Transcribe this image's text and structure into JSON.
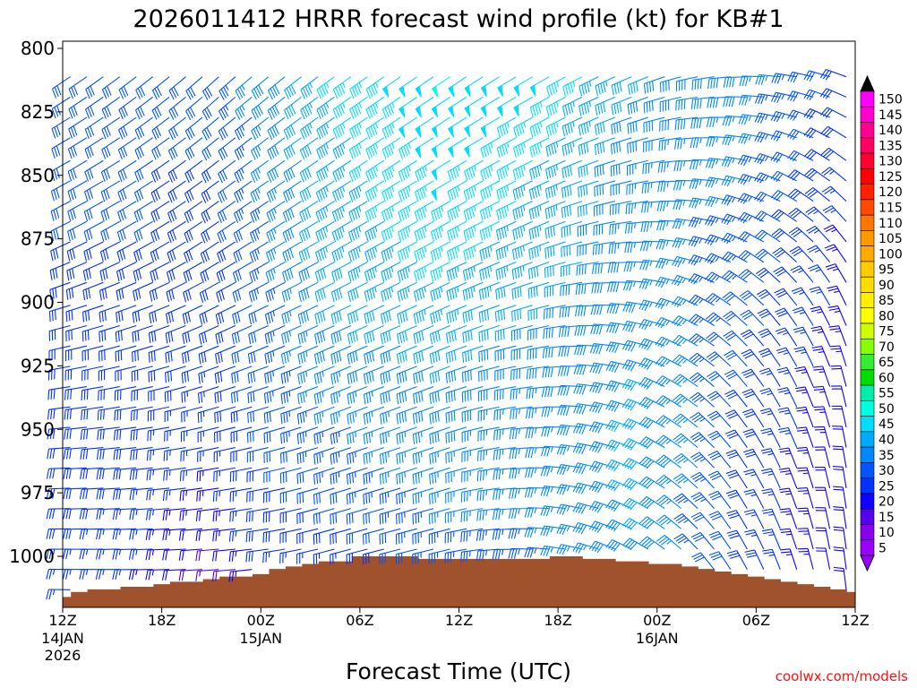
{
  "chart_data": {
    "type": "wind_barb_profile",
    "title": "2026011412 HRRR forecast wind profile (kt) for KB#1",
    "xlabel": "Forecast Time (UTC)",
    "ylabel": "",
    "credit": "coolwx.com/models",
    "x_range_hours": [
      0,
      48
    ],
    "y_range_hpa": [
      800,
      1020
    ],
    "y_ticks": [
      {
        "value": 800,
        "label": "800"
      },
      {
        "value": 825,
        "label": "825"
      },
      {
        "value": 850,
        "label": "850"
      },
      {
        "value": 875,
        "label": "875"
      },
      {
        "value": 900,
        "label": "900"
      },
      {
        "value": 925,
        "label": "925"
      },
      {
        "value": 950,
        "label": "950"
      },
      {
        "value": 975,
        "label": "975"
      },
      {
        "value": 1000,
        "label": "1000"
      }
    ],
    "x_ticks": [
      {
        "hour": 0,
        "label": "12Z",
        "sub": [
          "14JAN",
          "2026"
        ]
      },
      {
        "hour": 6,
        "label": "18Z",
        "sub": []
      },
      {
        "hour": 12,
        "label": "00Z",
        "sub": [
          "15JAN"
        ]
      },
      {
        "hour": 18,
        "label": "06Z",
        "sub": []
      },
      {
        "hour": 24,
        "label": "12Z",
        "sub": []
      },
      {
        "hour": 30,
        "label": "18Z",
        "sub": []
      },
      {
        "hour": 36,
        "label": "00Z",
        "sub": [
          "16JAN"
        ]
      },
      {
        "hour": 42,
        "label": "06Z",
        "sub": []
      },
      {
        "hour": 48,
        "label": "12Z",
        "sub": []
      }
    ],
    "colorbar": {
      "labels": [
        "150",
        "145",
        "140",
        "135",
        "130",
        "125",
        "120",
        "115",
        "110",
        "105",
        "100",
        "95",
        "90",
        "85",
        "80",
        "75",
        "70",
        "65",
        "60",
        "55",
        "50",
        "45",
        "40",
        "35",
        "30",
        "25",
        "20",
        "15",
        "10",
        "5"
      ],
      "colors": [
        "#ff00ff",
        "#ff00d0",
        "#ff0090",
        "#ff0060",
        "#ff0030",
        "#ff0000",
        "#ff2000",
        "#ff4a00",
        "#ff7700",
        "#ff9900",
        "#ffaa00",
        "#ffcc00",
        "#ffdd00",
        "#ffee00",
        "#ffff00",
        "#ccff00",
        "#88ff00",
        "#33ee33",
        "#00dd00",
        "#00eeaa",
        "#00ffdd",
        "#00ddff",
        "#00aaff",
        "#0088ff",
        "#0055ff",
        "#0033ff",
        "#1100ff",
        "#5500ee",
        "#8800ee",
        "#9900ff"
      ],
      "top_arrow_color": "#000000",
      "bottom_arrow_color": "#9900ff"
    },
    "terrain": {
      "color": "#a0522d",
      "hours": [
        0,
        1,
        2,
        3,
        4,
        5,
        6,
        7,
        8,
        9,
        10,
        11,
        12,
        13,
        14,
        15,
        16,
        17,
        18,
        19,
        20,
        21,
        22,
        23,
        24,
        25,
        26,
        27,
        28,
        29,
        30,
        31,
        32,
        33,
        34,
        35,
        36,
        37,
        38,
        39,
        40,
        41,
        42,
        43,
        44,
        45,
        46,
        47,
        48
      ],
      "pressure": [
        1016,
        1014,
        1013,
        1013,
        1012,
        1012,
        1011,
        1010,
        1010,
        1009,
        1008,
        1008,
        1007,
        1005,
        1004,
        1003,
        1002,
        1002,
        1000,
        1000,
        1000,
        1000,
        1001,
        1001,
        1001,
        1001,
        1001,
        1001,
        1001,
        1001,
        1000,
        1000,
        1001,
        1001,
        1002,
        1002,
        1003,
        1003,
        1004,
        1005,
        1006,
        1007,
        1008,
        1009,
        1010,
        1011,
        1012,
        1013,
        1014
      ]
    },
    "barbs": {
      "levels_hpa": [
        808,
        816,
        824,
        832,
        841,
        849,
        857,
        865,
        873,
        881,
        889,
        898,
        906,
        914,
        922,
        930,
        938,
        946,
        954,
        962,
        970,
        978,
        986,
        994,
        1002,
        1010
      ],
      "hours": [
        1,
        2,
        3,
        4,
        5,
        6,
        7,
        8,
        9,
        10,
        11,
        12,
        13,
        14,
        15,
        16,
        17,
        18,
        19,
        20,
        21,
        22,
        23,
        24,
        25,
        26,
        27,
        28,
        29,
        30,
        31,
        32,
        33,
        34,
        35,
        36,
        37,
        38,
        39,
        40,
        41,
        42,
        43,
        44,
        45,
        46,
        47,
        48
      ],
      "keyframes": [
        {
          "hour": 0,
          "dir": [
            237,
            241,
            245,
            255,
            262,
            268,
            270,
            271
          ],
          "spd": [
            32,
            31,
            30,
            30,
            30,
            29,
            28,
            26
          ]
        },
        {
          "hour": 6,
          "dir": [
            232,
            236,
            240,
            250,
            258,
            264,
            268,
            270
          ],
          "spd": [
            31,
            30,
            30,
            29,
            28,
            28,
            26,
            24
          ]
        },
        {
          "hour": 10,
          "dir": [
            228,
            232,
            236,
            244,
            252,
            260,
            265,
            266
          ],
          "spd": [
            30,
            30,
            28,
            28,
            27,
            25,
            20,
            14
          ]
        },
        {
          "hour": 13,
          "dir": [
            230,
            234,
            238,
            245,
            252,
            258,
            262,
            264
          ],
          "spd": [
            38,
            36,
            34,
            32,
            32,
            30,
            28,
            26
          ]
        },
        {
          "hour": 17,
          "dir": [
            234,
            236,
            240,
            245,
            248,
            252,
            255,
            256
          ],
          "spd": [
            45,
            44,
            43,
            40,
            36,
            33,
            28,
            18
          ]
        },
        {
          "hour": 24,
          "dir": [
            236,
            238,
            242,
            246,
            250,
            252,
            256,
            258
          ],
          "spd": [
            50,
            48,
            47,
            43,
            39,
            37,
            34,
            32
          ]
        },
        {
          "hour": 30,
          "dir": [
            240,
            244,
            248,
            256,
            264,
            270,
            274,
            275
          ],
          "spd": [
            48,
            45,
            43,
            40,
            37,
            35,
            35,
            33
          ]
        },
        {
          "hour": 36,
          "dir": [
            248,
            256,
            266,
            280,
            290,
            296,
            300,
            302
          ],
          "spd": [
            40,
            37,
            36,
            38,
            40,
            42,
            40,
            38
          ]
        },
        {
          "hour": 42,
          "dir": [
            268,
            280,
            292,
            310,
            320,
            326,
            330,
            332
          ],
          "spd": [
            38,
            36,
            34,
            32,
            30,
            29,
            28,
            30
          ]
        },
        {
          "hour": 48,
          "dir": [
            290,
            305,
            320,
            335,
            345,
            350,
            352,
            353
          ],
          "spd": [
            29,
            28,
            25,
            24,
            22,
            21,
            20,
            20
          ]
        }
      ],
      "keyframe_levels_hpa": [
        808,
        840,
        870,
        900,
        930,
        960,
        990,
        1010
      ]
    }
  }
}
